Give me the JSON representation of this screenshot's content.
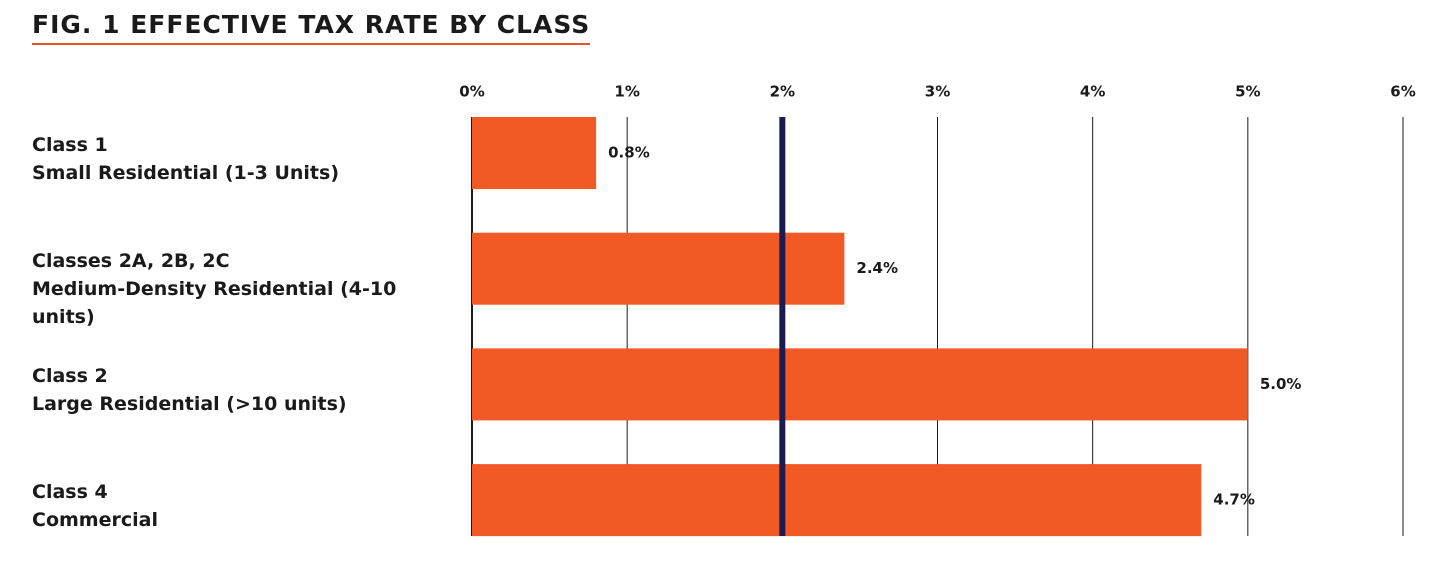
{
  "chart_data": {
    "type": "bar",
    "orientation": "horizontal",
    "title": "FIG. 1 EFFECTIVE TAX RATE BY CLASS",
    "categories": [
      [
        "Class 1",
        "Small Residential (1-3 Units)"
      ],
      [
        "Classes 2A, 2B, 2C",
        "Medium-Density Residential (4-10 units)"
      ],
      [
        "Class 2",
        "Large Residential (>10 units)"
      ],
      [
        "Class 4",
        "Commercial"
      ]
    ],
    "values": [
      0.8,
      2.4,
      5.0,
      4.7
    ],
    "value_labels": [
      "0.8%",
      "2.4%",
      "5.0%",
      "4.7%"
    ],
    "color": "#f15a24",
    "xlim": [
      0,
      6
    ],
    "xticks": [
      {
        "value": 0,
        "label": "0%"
      },
      {
        "value": 1,
        "label": "1%"
      },
      {
        "value": 2,
        "label": "2%"
      },
      {
        "value": 3,
        "label": "3%"
      },
      {
        "value": 4,
        "label": "4%"
      },
      {
        "value": 5,
        "label": "5%"
      },
      {
        "value": 6,
        "label": "6%"
      }
    ],
    "grid": true,
    "reference_line": {
      "value": 2,
      "color": "#1c1a4f"
    }
  }
}
